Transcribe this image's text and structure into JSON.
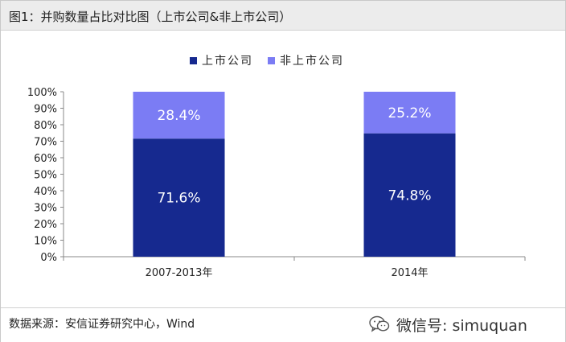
{
  "header": {
    "title": "图1：并购数量占比对比图（上市公司&非上市公司）"
  },
  "footer": {
    "source": "数据来源：安信证券研究中心，Wind",
    "watermark": "微信号: simuquan",
    "wechat_icon": "wechat-icon"
  },
  "colors": {
    "listed": "#16298f",
    "unlisted": "#7b7cf4"
  },
  "chart_data": {
    "type": "bar",
    "stacked": true,
    "categories": [
      "2007-2013年",
      "2014年"
    ],
    "series": [
      {
        "name": "上市公司",
        "values": [
          71.6,
          74.8
        ],
        "labels": [
          "71.6%",
          "74.8%"
        ]
      },
      {
        "name": "非上市公司",
        "values": [
          28.4,
          25.2
        ],
        "labels": [
          "28.4%",
          "25.2%"
        ]
      }
    ],
    "yticks": [
      "0%",
      "10%",
      "20%",
      "30%",
      "40%",
      "50%",
      "60%",
      "70%",
      "80%",
      "90%",
      "100%"
    ],
    "ylim": [
      0,
      100
    ],
    "grid": false,
    "legend": "top-center"
  }
}
